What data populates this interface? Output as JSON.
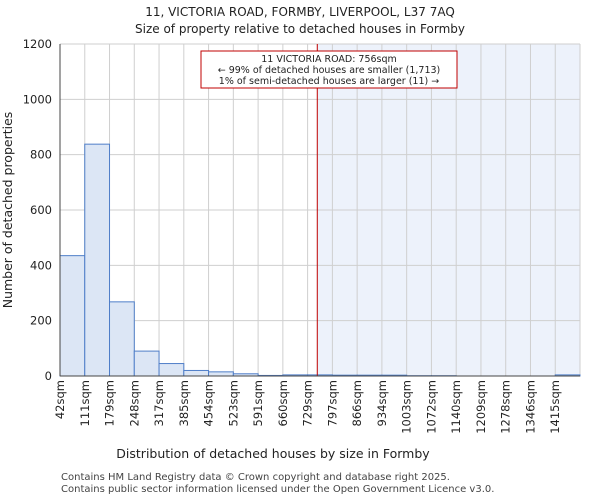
{
  "chart_data": {
    "type": "bar",
    "title": "11, VICTORIA ROAD, FORMBY, LIVERPOOL, L37 7AQ",
    "subtitle": "Size of property relative to detached houses in Formby",
    "xlabel": "Distribution of detached houses by size in Formby",
    "ylabel": "Number of detached properties",
    "categories": [
      "42sqm",
      "111sqm",
      "179sqm",
      "248sqm",
      "317sqm",
      "385sqm",
      "454sqm",
      "523sqm",
      "591sqm",
      "660sqm",
      "729sqm",
      "797sqm",
      "866sqm",
      "934sqm",
      "1003sqm",
      "1072sqm",
      "1140sqm",
      "1209sqm",
      "1278sqm",
      "1346sqm",
      "1415sqm"
    ],
    "values": [
      435,
      838,
      268,
      90,
      45,
      20,
      15,
      8,
      2,
      4,
      4,
      3,
      3,
      3,
      1,
      1,
      0,
      0,
      0,
      0,
      4
    ],
    "ylim": [
      0,
      1200
    ],
    "yticks": [
      0,
      200,
      400,
      600,
      800,
      1000,
      1200
    ],
    "grid": true,
    "bar_color": "#dce6f5",
    "bar_edge_color": "#4f7ec8",
    "highlight_color": "#edf2fb",
    "marker_color": "#c00000",
    "marker_bin_index": 10.39,
    "annotation": {
      "line1": "11 VICTORIA ROAD: 756sqm",
      "line2": "← 99% of detached houses are smaller (1,713)",
      "line3": "1% of semi-detached houses are larger (11) →"
    }
  },
  "footer": {
    "line1": "Contains HM Land Registry data © Crown copyright and database right 2025.",
    "line2": "Contains public sector information licensed under the Open Government Licence v3.0."
  }
}
